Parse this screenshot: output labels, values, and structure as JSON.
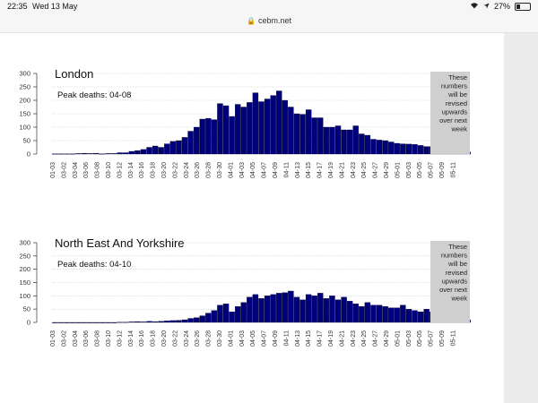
{
  "status": {
    "time": "22:35",
    "date": "Wed 13 May",
    "battery": "27%",
    "battery_level": 0.27
  },
  "browser": {
    "url": "cebm.net"
  },
  "colors": {
    "bar": "#00007a",
    "note_bg": "#cfcfcf"
  },
  "note_lines": [
    "These",
    "numbers",
    "will be",
    "revised",
    "upwards",
    "over next",
    "week"
  ],
  "chart_data": [
    {
      "type": "bar",
      "title": "London",
      "annotation": "Peak deaths: 04-08",
      "ylim": [
        0,
        300
      ],
      "yticks": [
        "0",
        "50",
        "100",
        "150",
        "200",
        "250",
        "300"
      ],
      "tick_labels": [
        "01-03",
        "03-02",
        "03-04",
        "03-06",
        "03-08",
        "03-10",
        "03-12",
        "03-14",
        "03-16",
        "03-18",
        "03-20",
        "03-22",
        "03-24",
        "03-26",
        "03-28",
        "03-30",
        "04-01",
        "04-03",
        "04-05",
        "04-07",
        "04-09",
        "04-11",
        "04-13",
        "04-15",
        "04-17",
        "04-19",
        "04-21",
        "04-23",
        "04-25",
        "04-27",
        "04-29",
        "05-01",
        "05-03",
        "05-05",
        "05-07",
        "05-09",
        "05-11"
      ],
      "values": [
        1,
        1,
        1,
        1,
        2,
        3,
        2,
        3,
        1,
        2,
        2,
        5,
        5,
        10,
        13,
        17,
        25,
        30,
        25,
        38,
        47,
        50,
        62,
        85,
        100,
        130,
        133,
        128,
        188,
        180,
        140,
        185,
        175,
        192,
        228,
        195,
        205,
        218,
        235,
        200,
        175,
        150,
        148,
        165,
        135,
        135,
        100,
        100,
        105,
        90,
        90,
        105,
        75,
        70,
        55,
        52,
        50,
        45,
        40,
        38,
        37,
        36,
        32,
        28,
        28,
        31,
        32,
        26,
        20,
        18,
        8
      ]
    },
    {
      "type": "bar",
      "title": "North East And Yorkshire",
      "annotation": "Peak deaths: 04-10",
      "ylim": [
        0,
        300
      ],
      "yticks": [
        "0",
        "50",
        "100",
        "150",
        "200",
        "250",
        "300"
      ],
      "tick_labels": [
        "01-03",
        "03-02",
        "03-04",
        "03-06",
        "03-08",
        "03-10",
        "03-12",
        "03-14",
        "03-16",
        "03-18",
        "03-20",
        "03-22",
        "03-24",
        "03-26",
        "03-28",
        "03-30",
        "04-01",
        "04-03",
        "04-05",
        "04-07",
        "04-09",
        "04-11",
        "04-13",
        "04-15",
        "04-17",
        "04-19",
        "04-21",
        "04-23",
        "04-25",
        "04-27",
        "04-29",
        "05-01",
        "05-03",
        "05-05",
        "05-07",
        "05-09",
        "05-11"
      ],
      "values": [
        0,
        0,
        0,
        0,
        0,
        0,
        0,
        0,
        0,
        0,
        0,
        1,
        1,
        2,
        3,
        2,
        4,
        3,
        4,
        6,
        7,
        8,
        10,
        15,
        18,
        25,
        35,
        45,
        65,
        70,
        40,
        60,
        75,
        95,
        105,
        90,
        100,
        105,
        110,
        112,
        118,
        95,
        85,
        105,
        100,
        110,
        90,
        100,
        85,
        95,
        80,
        70,
        60,
        75,
        65,
        65,
        60,
        55,
        55,
        65,
        50,
        45,
        40,
        50,
        40,
        50,
        45,
        40,
        45,
        35,
        10
      ]
    }
  ]
}
